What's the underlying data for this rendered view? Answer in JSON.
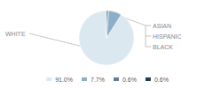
{
  "chart_data": {
    "type": "pie",
    "categories": [
      "91.0%",
      "7.7%",
      "0.6%",
      "0.6%"
    ],
    "values": [
      91.0,
      7.7,
      0.6,
      0.6
    ],
    "colors": [
      "#dce8f0",
      "#8bafc8",
      "#5a7fa0",
      "#1e3f5a"
    ],
    "annotations": [
      "WHITE",
      "ASIAN",
      "HISPANIC",
      "BLACK"
    ],
    "legend": "bottom"
  }
}
